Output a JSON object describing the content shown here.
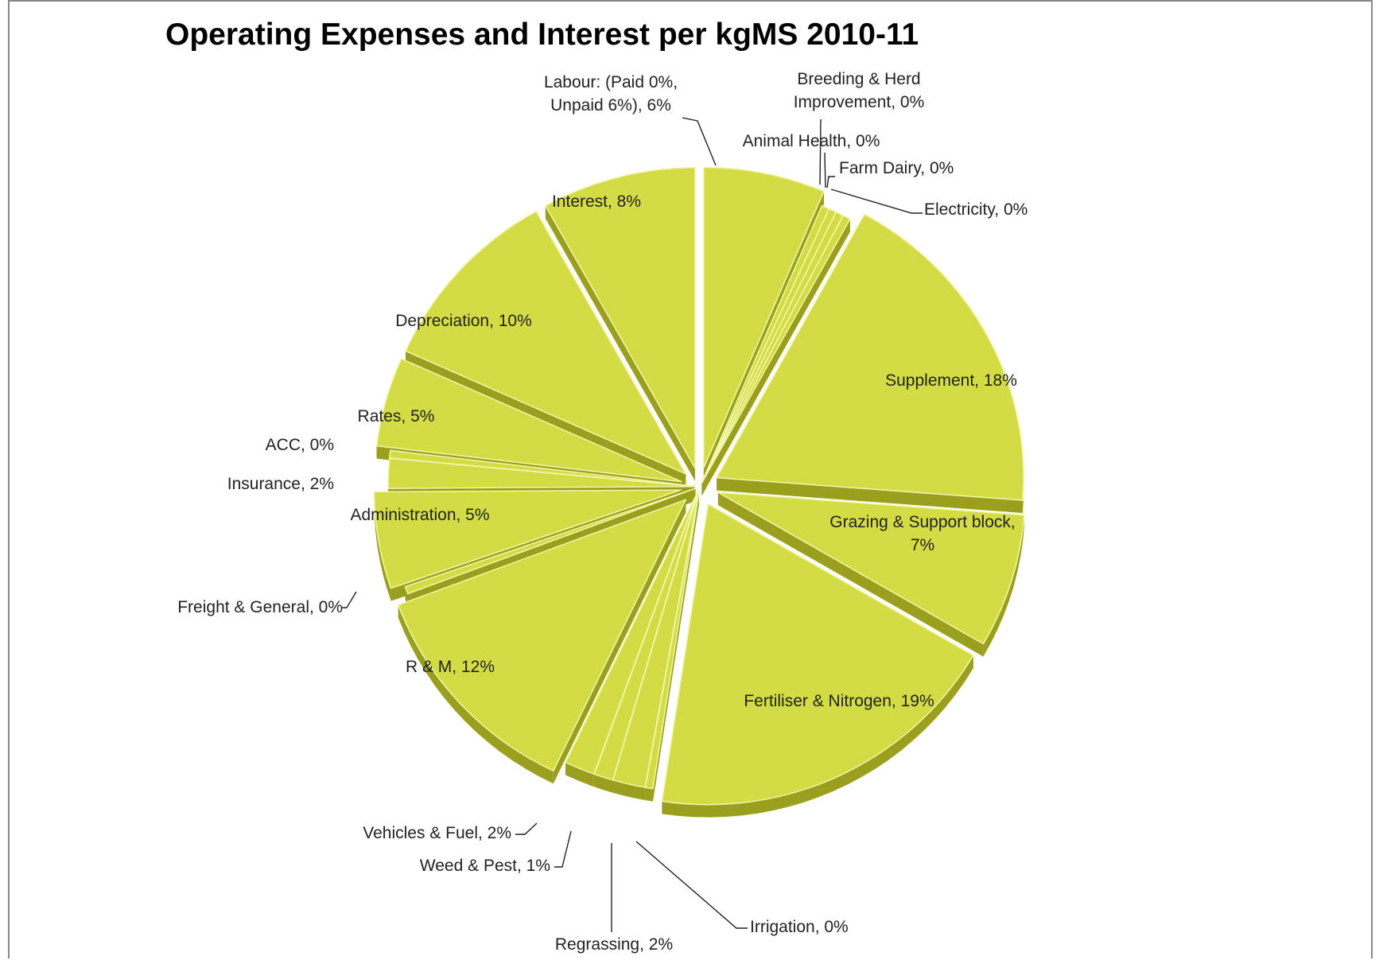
{
  "chart_data": {
    "type": "pie",
    "title": "Operating Expenses and Interest per kgMS 2010-11",
    "colors": {
      "slice_top": "#d4dc45",
      "slice_side": "#9aa01e",
      "slice_edge": "#f2f6a8",
      "leader": "#222222"
    },
    "slices": [
      {
        "name": "Labour: (Paid 0%, Unpaid 6%)",
        "value": 6.4,
        "label_lines": [
          "Labour: (Paid 0%,",
          "Unpaid 6%), 6%"
        ],
        "exploded": true
      },
      {
        "name": "Breeding & Herd Improvement",
        "value": 0.4,
        "label_lines": [
          "Breeding & Herd",
          "Improvement, 0%"
        ],
        "exploded": false
      },
      {
        "name": "Animal Health",
        "value": 0.4,
        "label_lines": [
          "Animal Health, 0%"
        ],
        "exploded": false
      },
      {
        "name": "Farm Dairy",
        "value": 0.4,
        "label_lines": [
          "Farm Dairy, 0%"
        ],
        "exploded": false
      },
      {
        "name": "Electricity",
        "value": 0.4,
        "label_lines": [
          "Electricity, 0%"
        ],
        "exploded": false
      },
      {
        "name": "Supplement",
        "value": 18.2,
        "label_lines": [
          "Supplement, 18%"
        ],
        "exploded": true
      },
      {
        "name": "Grazing & Support block",
        "value": 7.2,
        "label_lines": [
          "Grazing & Support block,",
          "7%"
        ],
        "exploded": true
      },
      {
        "name": "Fertiliser & Nitrogen",
        "value": 19.0,
        "label_lines": [
          "Fertiliser & Nitrogen, 19%"
        ],
        "exploded": true
      },
      {
        "name": "Irrigation",
        "value": 0.4,
        "label_lines": [
          "Irrigation, 0%"
        ],
        "exploded": false
      },
      {
        "name": "Regrassing",
        "value": 1.7,
        "label_lines": [
          "Regrassing, 2%"
        ],
        "exploded": false
      },
      {
        "name": "Weed & Pest",
        "value": 1.0,
        "label_lines": [
          "Weed & Pest, 1%"
        ],
        "exploded": false
      },
      {
        "name": "Vehicles & Fuel",
        "value": 1.6,
        "label_lines": [
          "Vehicles & Fuel, 2%"
        ],
        "exploded": false
      },
      {
        "name": "R & M",
        "value": 12.2,
        "label_lines": [
          "R & M, 12%"
        ],
        "exploded": true
      },
      {
        "name": "Freight & General",
        "value": 0.4,
        "label_lines": [
          "Freight & General, 0%"
        ],
        "exploded": false
      },
      {
        "name": "Administration",
        "value": 5.2,
        "label_lines": [
          "Administration, 5%"
        ],
        "exploded": true
      },
      {
        "name": "Insurance",
        "value": 1.6,
        "label_lines": [
          "Insurance, 2%"
        ],
        "exploded": false
      },
      {
        "name": "ACC",
        "value": 0.4,
        "label_lines": [
          "ACC, 0%"
        ],
        "exploded": false
      },
      {
        "name": "Rates",
        "value": 4.8,
        "label_lines": [
          "Rates, 5%"
        ],
        "exploded": true
      },
      {
        "name": "Depreciation",
        "value": 10.2,
        "label_lines": [
          "Depreciation, 10%"
        ],
        "exploded": true
      },
      {
        "name": "Interest",
        "value": 8.1,
        "label_lines": [
          "Interest, 8%"
        ],
        "exploded": true
      }
    ]
  }
}
